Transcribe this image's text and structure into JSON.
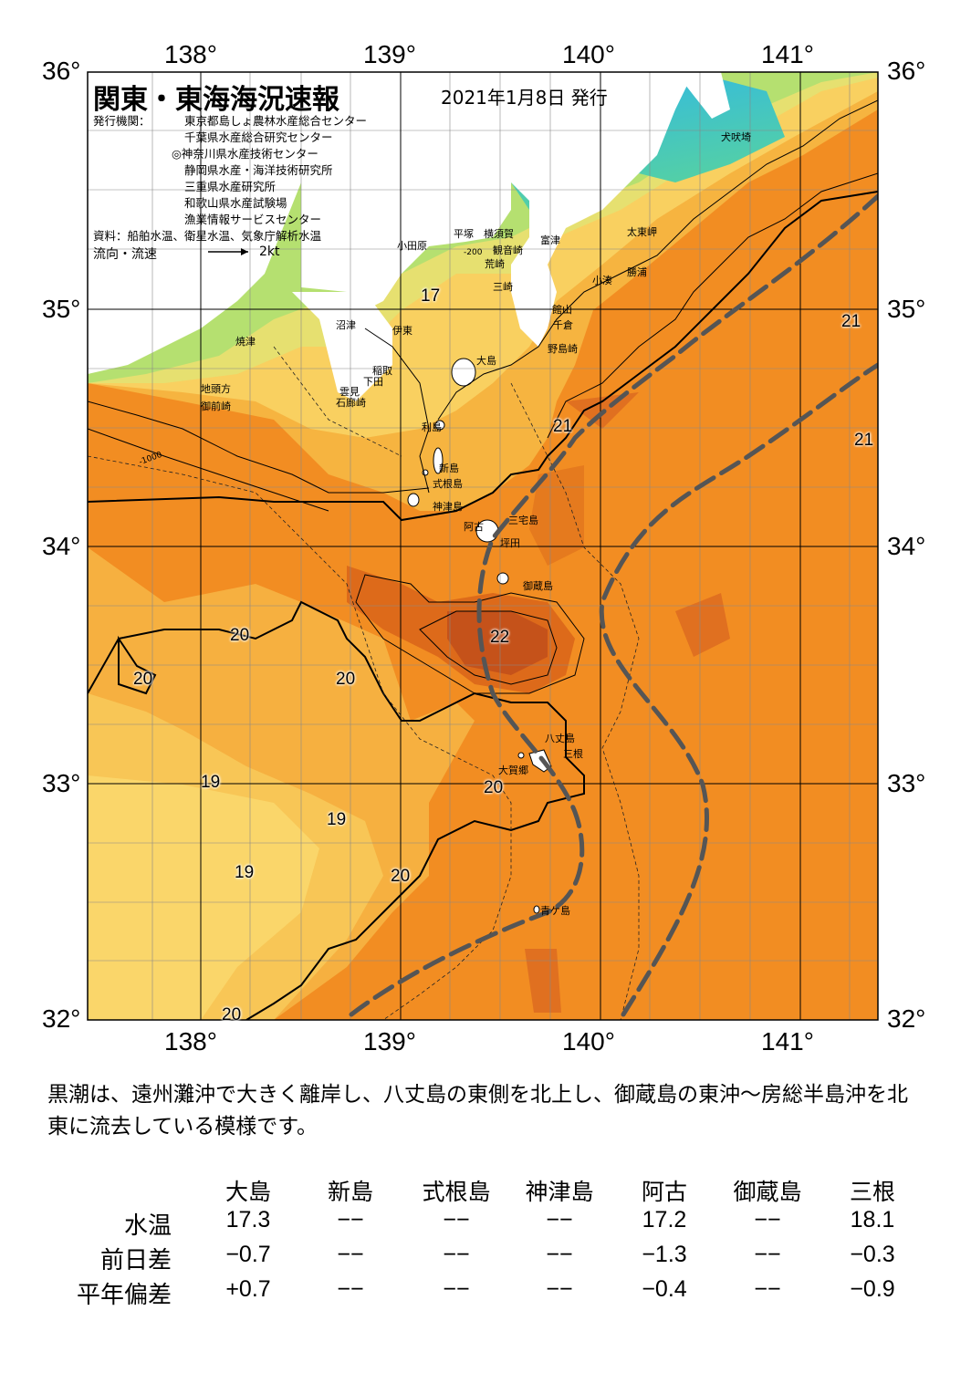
{
  "header": {
    "title": "関東・東海海況速報",
    "date": "2021年1月8日 発行",
    "issuers_label": "発行機関：",
    "issuers": [
      "東京都島しょ農林水産総合センター",
      "千葉県水産総合研究センター",
      "◎神奈川県水産技術センター",
      "静岡県水産・海洋技術研究所",
      "三重県水産研究所",
      "和歌山県水産試験場",
      "漁業情報サービスセンター"
    ],
    "source": "資料：船舶水温、衛星水温、気象庁解析水温",
    "flow_label": "流向・流速",
    "flow_unit": "2kt"
  },
  "axes": {
    "lon_top": [
      "138°",
      "139°",
      "140°",
      "141°"
    ],
    "lon_bottom": [
      "138°",
      "139°",
      "140°",
      "141°"
    ],
    "lat_left": [
      "36°",
      "35°",
      "34°",
      "33°",
      "32°"
    ],
    "lat_right": [
      "36°",
      "35°",
      "34°",
      "33°",
      "32°"
    ]
  },
  "places": [
    "犬吠埼",
    "太東岬",
    "勝浦",
    "小湊",
    "富津",
    "館山",
    "千倉",
    "野島崎",
    "平塚",
    "横須賀",
    "観音崎",
    "荒崎",
    "三崎",
    "小田原",
    "沼津",
    "伊東",
    "焼津",
    "地頭方",
    "御前崎",
    "稲取",
    "下田",
    "雲見",
    "石廊崎",
    "大島",
    "利島",
    "新島",
    "式根島",
    "神津島",
    "阿古",
    "三宅島",
    "坪田",
    "御蔵島",
    "八丈島",
    "三根",
    "大賀郷",
    "青ケ島"
  ],
  "isotherm_labels": [
    "17",
    "20",
    "20",
    "20",
    "19",
    "19",
    "19",
    "20",
    "20",
    "21",
    "21",
    "21",
    "22",
    "20"
  ],
  "depth_labels": [
    "-1000",
    "-200"
  ],
  "colors": {
    "kuroshio_axis": "#555555",
    "warm": "#f08c1e",
    "cool": "#f5d060",
    "cold": "#3aa0e8"
  },
  "comment": "黒潮は、遠州灘沖で大きく離岸し、八丈島の東側を北上し、御蔵島の東沖～房総半島沖を北東に流去している模様です。",
  "table": {
    "columns": [
      "大島",
      "新島",
      "式根島",
      "神津島",
      "阿古",
      "御蔵島",
      "三根"
    ],
    "rows": [
      {
        "label": "水温",
        "values": [
          "17.3",
          "−−",
          "−−",
          "−−",
          "17.2",
          "−−",
          "18.1"
        ]
      },
      {
        "label": "前日差",
        "values": [
          "−0.7",
          "−−",
          "−−",
          "−−",
          "−1.3",
          "−−",
          "−0.3"
        ]
      },
      {
        "label": "平年偏差",
        "values": [
          "+0.7",
          "−−",
          "−−",
          "−−",
          "−0.4",
          "−−",
          "−0.9"
        ]
      }
    ]
  }
}
